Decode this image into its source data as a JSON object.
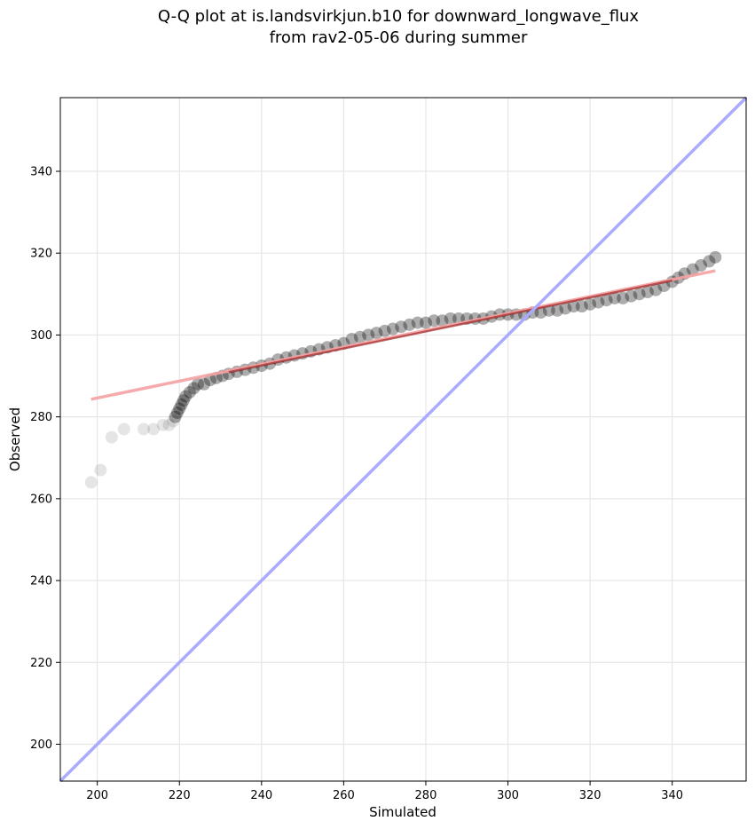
{
  "chart_data": {
    "type": "scatter",
    "title_lines": [
      "Q-Q plot at is.landsvirkjun.b10 for downward_longwave_flux",
      "from rav2-05-06 during summer"
    ],
    "xlabel": "Simulated",
    "ylabel": "Observed",
    "xlim": [
      191,
      358
    ],
    "ylim": [
      191,
      358
    ],
    "xticks": [
      200,
      220,
      240,
      260,
      280,
      300,
      320,
      340
    ],
    "yticks": [
      200,
      220,
      240,
      260,
      280,
      300,
      320,
      340
    ],
    "grid": true,
    "colors": {
      "points": "#000000",
      "fit_line": "#f4a2a2",
      "fit_line_dark": "#8b0000",
      "identity_line": "#aaaaff"
    },
    "identity_line": {
      "x": [
        191,
        358
      ],
      "y": [
        191,
        358
      ]
    },
    "fit_line": {
      "x": [
        198.5,
        350.5
      ],
      "y": [
        284.3,
        315.7
      ]
    },
    "quantiles": {
      "x": [
        198.5,
        200.8,
        203.5,
        206.5,
        211.3,
        213.7,
        216.0,
        217.5,
        218.5,
        219.0,
        219.5,
        220.0,
        220.5,
        221.0,
        221.5,
        222.5,
        223.5,
        224.5,
        226.0,
        227.5,
        229.0,
        230.5,
        232.0,
        234.0,
        236.0,
        238.0,
        240.0,
        242.0,
        244.0,
        246.0,
        248.0,
        250.0,
        252.0,
        254.0,
        256.0,
        258.0,
        260.0,
        262.0,
        264.0,
        266.0,
        268.0,
        270.0,
        272.0,
        274.0,
        276.0,
        278.0,
        280.0,
        282.0,
        284.0,
        286.0,
        288.0,
        290.0,
        292.0,
        294.0,
        296.0,
        298.0,
        300.0,
        302.0,
        304.0,
        306.0,
        308.0,
        310.0,
        312.0,
        314.0,
        316.0,
        318.0,
        320.0,
        322.0,
        324.0,
        326.0,
        328.0,
        330.0,
        332.0,
        334.0,
        336.0,
        338.0,
        340.0,
        341.5,
        343.0,
        345.0,
        347.0,
        349.0,
        350.5
      ],
      "y": [
        264,
        267,
        275,
        277,
        277,
        277,
        278,
        278,
        279,
        280,
        281,
        282,
        283,
        284,
        285,
        286,
        287,
        288,
        288,
        289,
        289.5,
        290,
        290.5,
        291,
        291.5,
        292,
        292.5,
        293,
        294,
        294.5,
        295,
        295.5,
        296,
        296.5,
        297,
        297.5,
        298,
        299,
        299.5,
        300,
        300.5,
        301,
        301.5,
        302,
        302.5,
        303,
        303,
        303.5,
        303.5,
        304,
        304,
        304,
        304,
        304,
        304.5,
        305,
        305,
        305,
        305,
        305.5,
        305.5,
        306,
        306,
        306.5,
        307,
        307,
        307.5,
        308,
        308.5,
        309,
        309,
        309.5,
        310,
        310.5,
        311,
        312,
        313,
        314,
        315,
        316,
        317,
        318,
        319
      ]
    }
  }
}
